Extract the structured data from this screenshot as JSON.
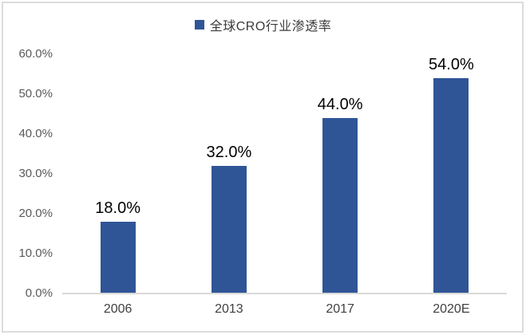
{
  "window": {
    "background": "#ffffff",
    "border_color": "#dcdcdc"
  },
  "legend": {
    "label": "全球CRO行业渗透率",
    "marker_color": "#2f5597"
  },
  "chart_data": {
    "type": "bar",
    "title": "",
    "series_name": "全球CRO行业渗透率",
    "categories": [
      "2006",
      "2013",
      "2017",
      "2020E"
    ],
    "values": [
      18.0,
      32.0,
      44.0,
      54.0
    ],
    "value_labels": [
      "18.0%",
      "32.0%",
      "44.0%",
      "54.0%"
    ],
    "xlabel": "",
    "ylabel": "",
    "ylim": [
      0,
      60
    ],
    "ytick_values": [
      0,
      10,
      20,
      30,
      40,
      50,
      60
    ],
    "ytick_labels": [
      "0.0%",
      "10.0%",
      "20.0%",
      "30.0%",
      "40.0%",
      "50.0%",
      "60.0%"
    ],
    "grid": false,
    "legend_position": "top-center",
    "bar_color": "#2f5597",
    "axis_line_color": "#d9d9d9",
    "ytick_label_color": "#595959",
    "xtick_label_color": "#404040",
    "data_label_color": "#000000"
  }
}
